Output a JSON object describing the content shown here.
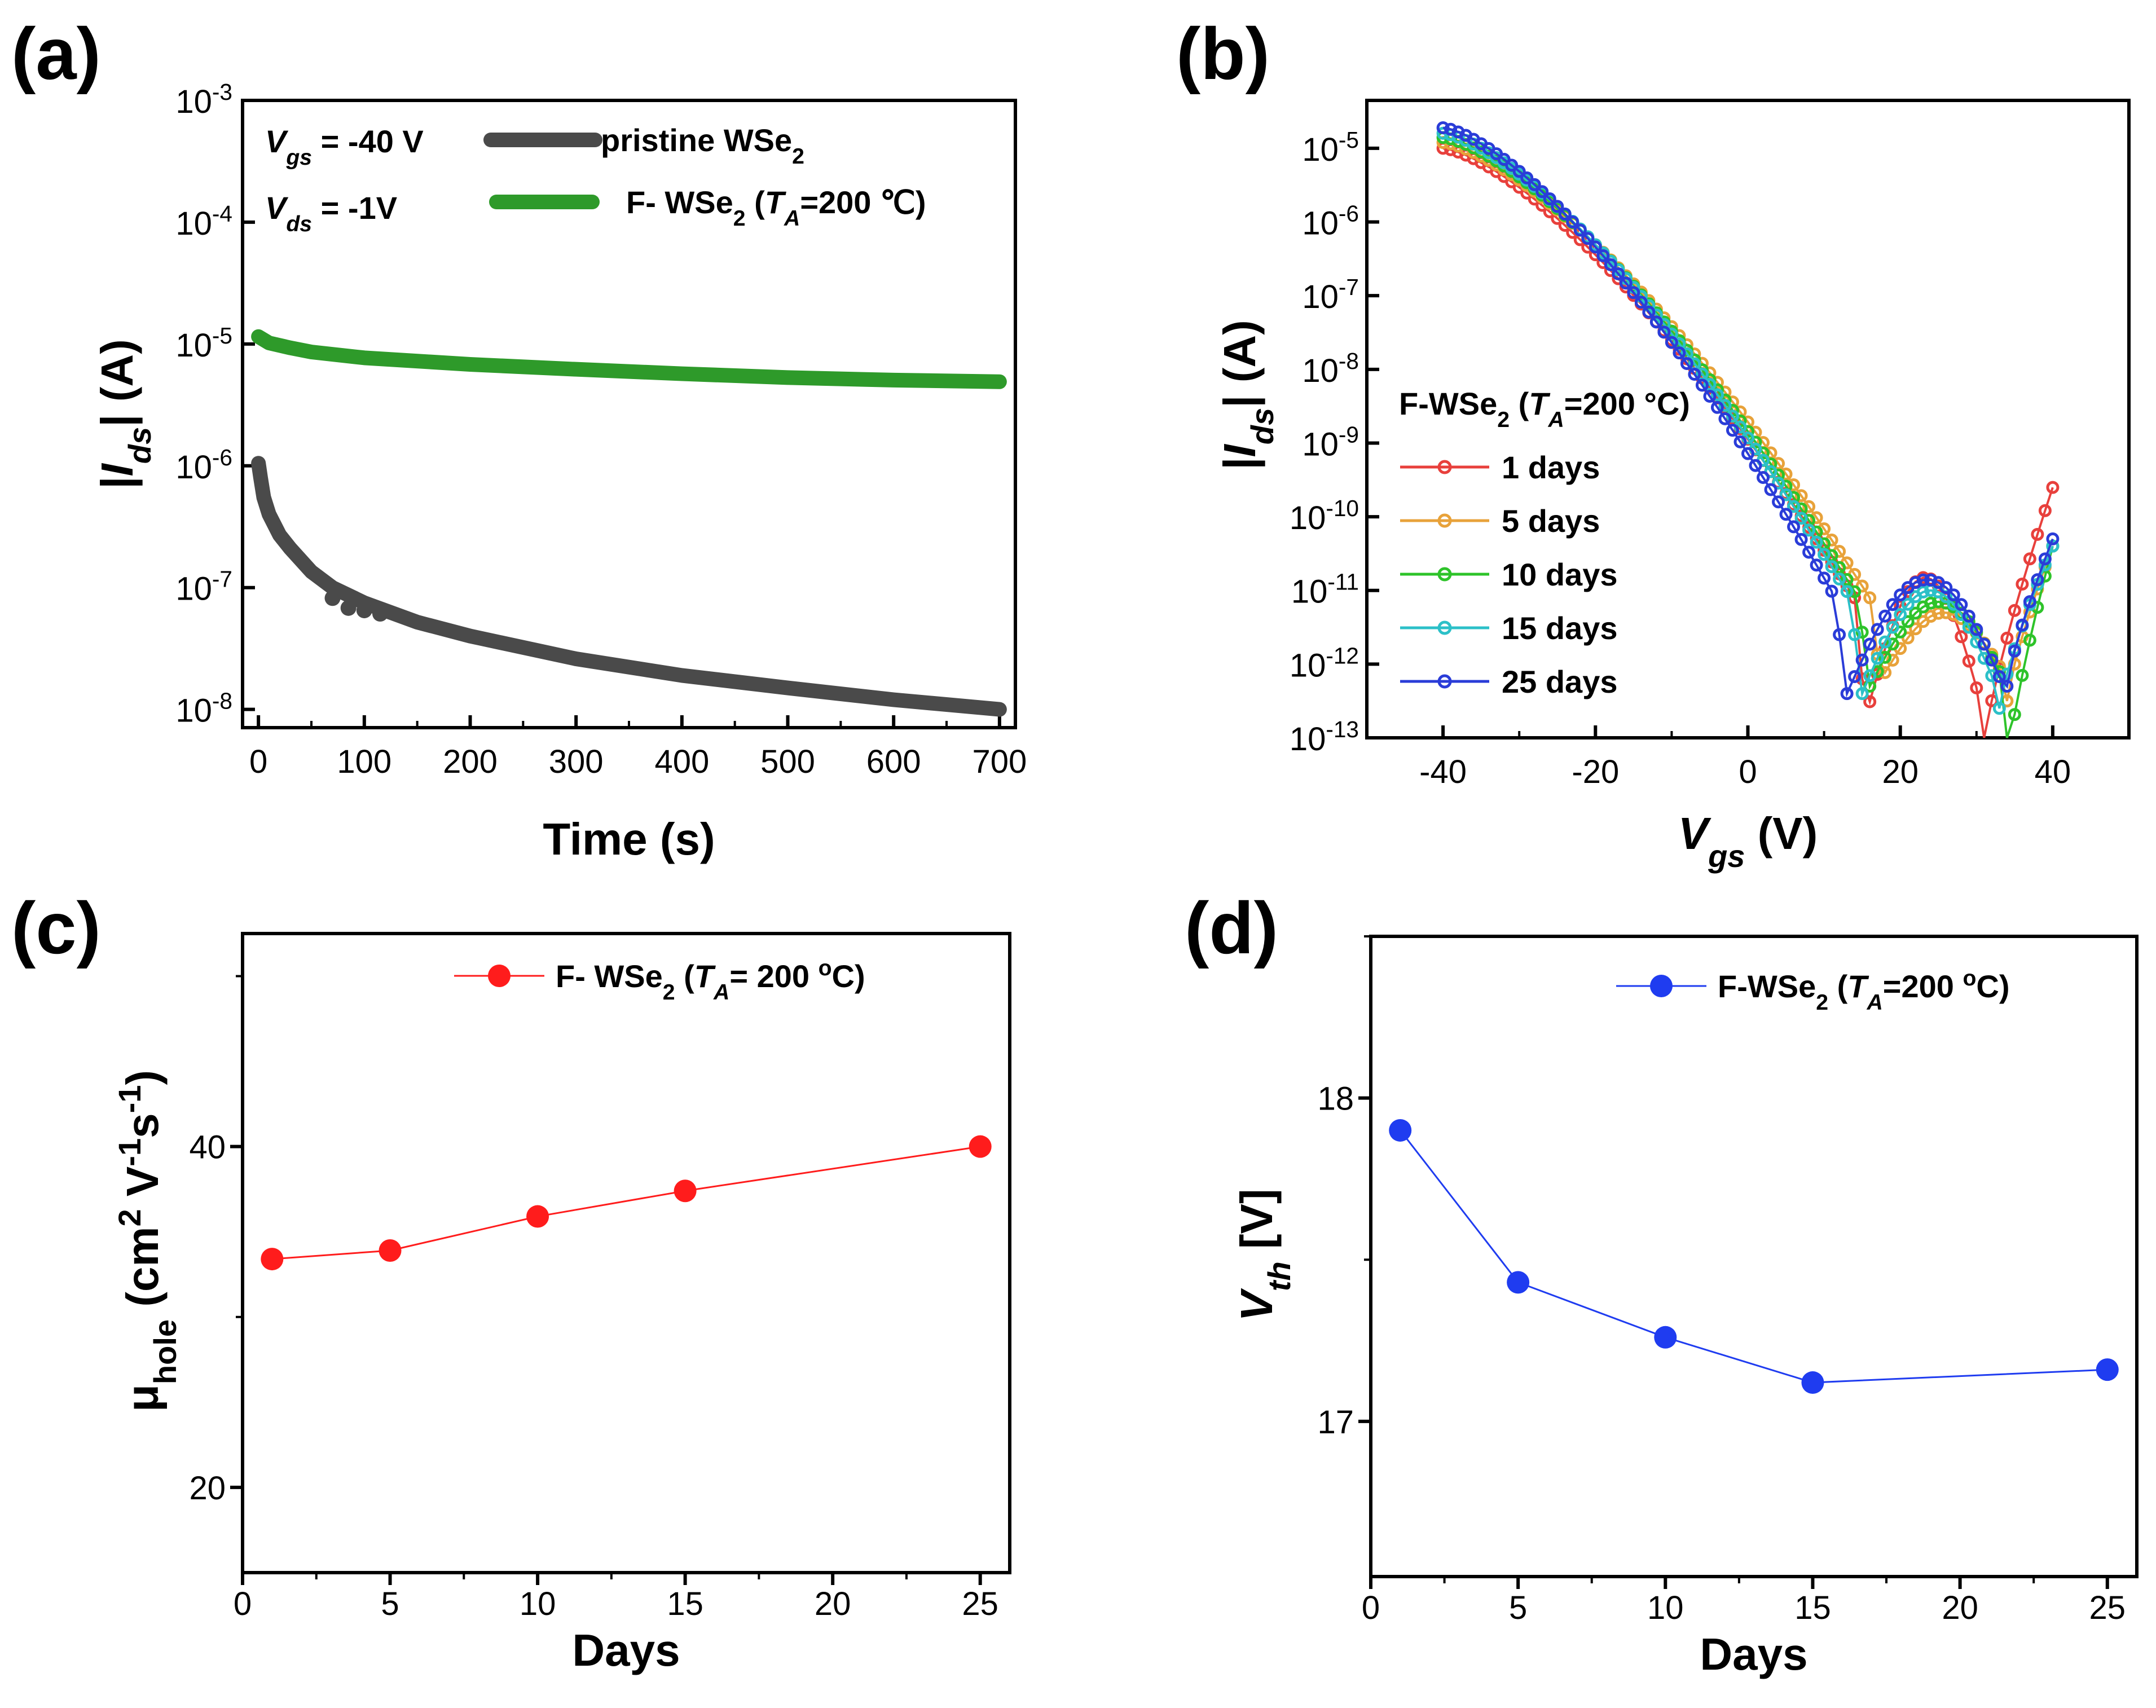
{
  "chart_data": [
    {
      "panel": "(a)",
      "type": "line",
      "x_ticks": [
        "0",
        "100",
        "200",
        "300",
        "400",
        "500",
        "600",
        "700"
      ],
      "y_ticks": [
        {
          "b": "10",
          "e": "-8"
        },
        {
          "b": "10",
          "e": "-7"
        },
        {
          "b": "10",
          "e": "-6"
        },
        {
          "b": "10",
          "e": "-5"
        },
        {
          "b": "10",
          "e": "-4"
        },
        {
          "b": "10",
          "e": "-3"
        }
      ],
      "xlabel": "Time (s)",
      "ylabel": {
        "pre": "|",
        "var": "I",
        "sub": "ds",
        "post": "| (A)"
      },
      "xlim": [
        -15,
        715
      ],
      "ylim_log10": [
        -8.15,
        -3
      ],
      "conditions": [
        {
          "var": "V",
          "sub": "gs",
          "text": "= -40 V"
        },
        {
          "var": "V",
          "sub": "ds",
          "text": "= -1V"
        }
      ],
      "series": [
        {
          "name": "pristine WSe",
          "sub": "2",
          "suffix": "",
          "color": "#4a4a4a",
          "x": [
            0,
            2,
            5,
            10,
            20,
            30,
            50,
            70,
            100,
            150,
            200,
            300,
            400,
            500,
            600,
            700
          ],
          "y": [
            1.05e-06,
            8e-07,
            5.5e-07,
            4e-07,
            2.7e-07,
            2.1e-07,
            1.35e-07,
            1e-07,
            7.5e-08,
            5.2e-08,
            4e-08,
            2.6e-08,
            1.9e-08,
            1.5e-08,
            1.2e-08,
            1e-08
          ]
        },
        {
          "name": "F- WSe",
          "sub": "2",
          "suffix": " (T_A=200 ℃)",
          "color": "#2e9a2a",
          "x": [
            0,
            10,
            30,
            50,
            100,
            200,
            300,
            400,
            500,
            600,
            700
          ],
          "y": [
            1.15e-05,
            1.02e-05,
            9.3e-06,
            8.6e-06,
            7.7e-06,
            6.8e-06,
            6.2e-06,
            5.7e-06,
            5.3e-06,
            5.05e-06,
            4.9e-06
          ]
        }
      ]
    },
    {
      "panel": "(b)",
      "type": "line",
      "x_ticks": [
        "-40",
        "-20",
        "0",
        "20",
        "40"
      ],
      "y_ticks": [
        {
          "b": "10",
          "e": "-13"
        },
        {
          "b": "10",
          "e": "-12"
        },
        {
          "b": "10",
          "e": "-11"
        },
        {
          "b": "10",
          "e": "-10"
        },
        {
          "b": "10",
          "e": "-9"
        },
        {
          "b": "10",
          "e": "-8"
        },
        {
          "b": "10",
          "e": "-7"
        },
        {
          "b": "10",
          "e": "-6"
        },
        {
          "b": "10",
          "e": "-5"
        }
      ],
      "xlabel": {
        "var": "V",
        "sub": "gs",
        "post": " (V)"
      },
      "ylabel": {
        "pre": "|",
        "var": "I",
        "sub": "ds",
        "post": "| (A)"
      },
      "xlim": [
        -50,
        50
      ],
      "ylim_log10": [
        -13,
        -4.35
      ],
      "legend_title": {
        "pre": "F-WSe",
        "sub": "2",
        "mid": " (",
        "var": "T",
        "vsub": "A",
        "post": "=200 °C)"
      },
      "series": [
        {
          "name": "1 days",
          "color": "#e8403c",
          "min1": 15.5,
          "min2": 31,
          "vt": 1,
          "peak": 1.5e-11,
          "floor": -12.7,
          "deep": -13.1,
          "right_end": 2.5e-10,
          "left_end": 1e-05
        },
        {
          "name": "5 days",
          "color": "#e8a23a",
          "min1": 17.5,
          "min2": 34,
          "vt": 3,
          "peak": 5e-12,
          "floor": -12.2,
          "deep": -12.5,
          "right_end": 4e-11,
          "left_end": 1.2e-05
        },
        {
          "name": "10 days",
          "color": "#2ec32a",
          "min1": 16,
          "min2": 34,
          "vt": 2,
          "peak": 7e-12,
          "floor": -12.3,
          "deep": -13.4,
          "right_end": 4e-11,
          "left_end": 1.4e-05
        },
        {
          "name": "15 days",
          "color": "#2cc0c8",
          "min1": 15,
          "min2": 33,
          "vt": 1.5,
          "peak": 1e-11,
          "floor": -12.4,
          "deep": -12.6,
          "right_end": 4e-11,
          "left_end": 1.6e-05
        },
        {
          "name": "25 days",
          "color": "#2a3cd8",
          "min1": 13,
          "min2": 34,
          "vt": 0,
          "peak": 1.4e-11,
          "floor": -12.4,
          "deep": -12.3,
          "right_end": 5e-11,
          "left_end": 1.9e-05
        }
      ]
    },
    {
      "panel": "(c)",
      "type": "line",
      "x_ticks": [
        "0",
        "5",
        "10",
        "15",
        "20",
        "25"
      ],
      "y_ticks": [
        "20",
        "40"
      ],
      "xlabel": "Days",
      "ylabel": {
        "mu": "μ",
        "sub": "hole",
        "post": " (cm",
        "sup1": "2",
        "post2": " V",
        "sup2": "-1",
        "post3": "s",
        "sup3": "-1",
        "post4": ")"
      },
      "xlim": [
        0,
        26
      ],
      "ylim": [
        15,
        52.5
      ],
      "legend": {
        "pre": "F- WSe",
        "sub": "2",
        "mid": "  (",
        "var": "T",
        "vsub": "A",
        "post": "= 200 ",
        "sup": "o",
        "post2": "C)"
      },
      "series": [
        {
          "name": "F- WSe2 (TA= 200 oC)",
          "color": "#ff1c1c",
          "x": [
            1,
            5,
            10,
            15,
            25
          ],
          "y": [
            33.4,
            33.9,
            35.9,
            37.4,
            40.0
          ]
        }
      ]
    },
    {
      "panel": "(d)",
      "type": "line",
      "x_ticks": [
        "0",
        "5",
        "10",
        "15",
        "20",
        "25"
      ],
      "y_ticks": [
        "17",
        "18"
      ],
      "xlabel": "Days",
      "ylabel": {
        "var": "V",
        "sub": "th",
        "post": " [V]"
      },
      "xlim": [
        0,
        26
      ],
      "ylim": [
        16.52,
        18.5
      ],
      "legend": {
        "pre": "F-WSe",
        "sub": "2",
        "mid": " (",
        "var": "T",
        "vsub": "A",
        "post": "=200 ",
        "sup": "o",
        "post2": "C)"
      },
      "series": [
        {
          "name": "F-WSe2 (TA=200 oC)",
          "color": "#1f3cf0",
          "x": [
            1,
            5,
            10,
            15,
            25
          ],
          "y": [
            17.9,
            17.43,
            17.26,
            17.12,
            17.16
          ]
        }
      ]
    }
  ]
}
